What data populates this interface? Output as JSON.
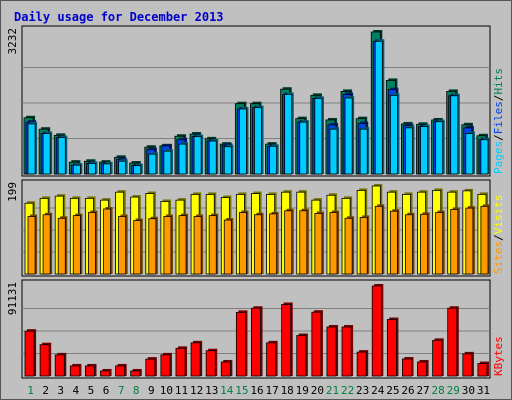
{
  "title": "Daily usage for December 2013",
  "colors": {
    "background": "#c0c0c0",
    "pages": "#00ccff",
    "files": "#0044ee",
    "hits": "#008060",
    "visits": "#ffff00",
    "sites": "#ff9900",
    "kbytes": "#ff0000",
    "weekend_label": "#008040",
    "weekday_label": "#000000",
    "title": "#0000cc"
  },
  "chart_data": [
    {
      "type": "bar",
      "panel": "hits-files-pages",
      "max_label": "3232",
      "ylim": [
        0,
        3232
      ],
      "grid": true,
      "legend": [
        "Pages",
        "/",
        "Files",
        "/",
        "Hits"
      ],
      "categories": [
        "1",
        "2",
        "3",
        "4",
        "5",
        "6",
        "7",
        "8",
        "9",
        "10",
        "11",
        "12",
        "13",
        "14",
        "15",
        "16",
        "17",
        "18",
        "19",
        "20",
        "21",
        "22",
        "23",
        "24",
        "25",
        "26",
        "27",
        "28",
        "29",
        "30",
        "31"
      ],
      "series": [
        {
          "name": "Hits",
          "values": [
            1280,
            1020,
            880,
            270,
            290,
            270,
            380,
            250,
            610,
            640,
            860,
            910,
            800,
            680,
            1600,
            1600,
            680,
            1930,
            1260,
            1790,
            1230,
            1880,
            1260,
            3232,
            2130,
            1140,
            1130,
            1230,
            1880,
            1120,
            870
          ]
        },
        {
          "name": "Files",
          "values": [
            1180,
            920,
            830,
            200,
            240,
            230,
            330,
            190,
            560,
            640,
            780,
            850,
            750,
            650,
            1480,
            1510,
            630,
            1810,
            1180,
            1720,
            1120,
            1810,
            1150,
            3020,
            1920,
            1100,
            1080,
            1190,
            1780,
            1050,
            780
          ]
        },
        {
          "name": "Pages",
          "values": [
            1140,
            920,
            830,
            200,
            240,
            230,
            290,
            190,
            450,
            520,
            680,
            850,
            750,
            620,
            1480,
            1510,
            630,
            1810,
            1180,
            1720,
            1020,
            1730,
            1020,
            3020,
            1790,
            1050,
            1080,
            1190,
            1780,
            920,
            780
          ]
        }
      ]
    },
    {
      "type": "bar",
      "panel": "visits-sites",
      "max_label": "199",
      "ylim": [
        0,
        199
      ],
      "grid": true,
      "legend": [
        "Sites",
        "/",
        "Visits"
      ],
      "categories": [
        "1",
        "2",
        "3",
        "4",
        "5",
        "6",
        "7",
        "8",
        "9",
        "10",
        "11",
        "12",
        "13",
        "14",
        "15",
        "16",
        "17",
        "18",
        "19",
        "20",
        "21",
        "22",
        "23",
        "24",
        "25",
        "26",
        "27",
        "28",
        "29",
        "30",
        "31"
      ],
      "series": [
        {
          "name": "Visits",
          "values": [
            160,
            171,
            176,
            171,
            171,
            167,
            185,
            174,
            182,
            164,
            167,
            180,
            180,
            173,
            180,
            182,
            180,
            185,
            185,
            167,
            178,
            171,
            189,
            199,
            185,
            180,
            185,
            189,
            185,
            188,
            180
          ]
        },
        {
          "name": "Sites",
          "values": [
            130,
            134,
            126,
            132,
            139,
            147,
            130,
            121,
            125,
            130,
            132,
            130,
            132,
            122,
            139,
            134,
            136,
            143,
            143,
            137,
            139,
            126,
            128,
            153,
            142,
            134,
            135,
            139,
            146,
            149,
            153
          ]
        }
      ]
    },
    {
      "type": "bar",
      "panel": "kbytes",
      "max_label": "91131",
      "ylim": [
        0,
        91131
      ],
      "grid": true,
      "legend": [
        "KBytes"
      ],
      "categories": [
        "1",
        "2",
        "3",
        "4",
        "5",
        "6",
        "7",
        "8",
        "9",
        "10",
        "11",
        "12",
        "13",
        "14",
        "15",
        "16",
        "17",
        "18",
        "19",
        "20",
        "21",
        "22",
        "23",
        "24",
        "25",
        "26",
        "27",
        "28",
        "29",
        "30",
        "31"
      ],
      "series": [
        {
          "name": "KBytes",
          "values": [
            45400,
            31700,
            21400,
            10200,
            10200,
            5100,
            10200,
            5100,
            17100,
            21400,
            28000,
            33600,
            25600,
            14200,
            64400,
            68600,
            33600,
            72400,
            41000,
            64600,
            49600,
            49600,
            24200,
            91131,
            57200,
            17200,
            14200,
            36100,
            68600,
            22400,
            12600
          ]
        }
      ]
    }
  ],
  "weekend_days": [
    1,
    7,
    8,
    14,
    15,
    21,
    22,
    28,
    29
  ]
}
